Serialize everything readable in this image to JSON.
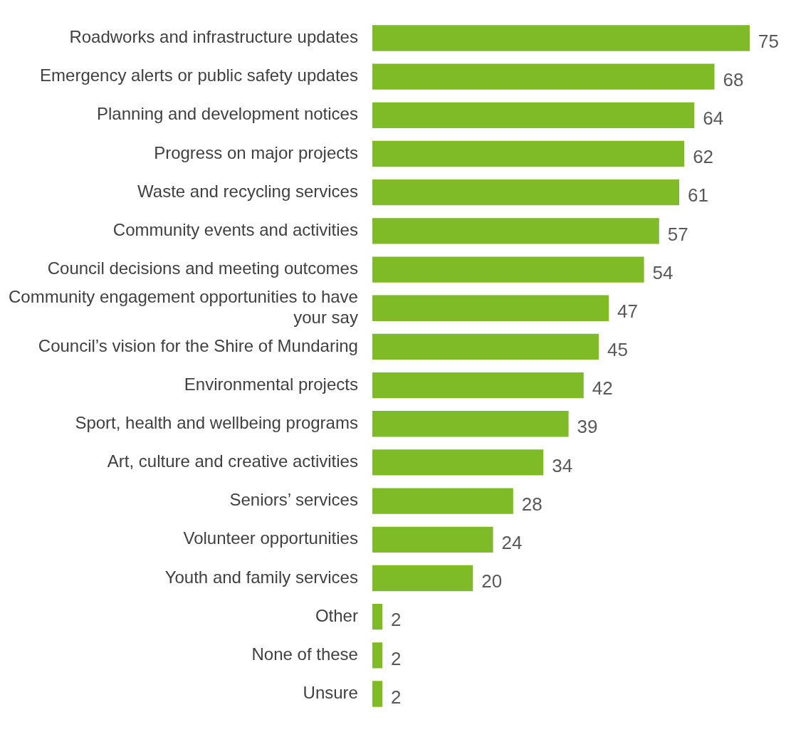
{
  "chart_data": {
    "type": "bar",
    "orientation": "horizontal",
    "categories": [
      "Roadworks and infrastructure updates",
      "Emergency alerts or public safety updates",
      "Planning and development notices",
      "Progress on major projects",
      "Waste and recycling services",
      "Community events and activities",
      "Council decisions and meeting outcomes",
      "Community engagement opportunities to have your say",
      "Council’s vision for the Shire of Mundaring",
      "Environmental projects",
      "Sport, health and wellbeing programs",
      "Art, culture and creative activities",
      "Seniors’ services",
      "Volunteer opportunities",
      "Youth and family services",
      "Other",
      "None of these",
      "Unsure"
    ],
    "values": [
      75,
      68,
      64,
      62,
      61,
      57,
      54,
      47,
      45,
      42,
      39,
      34,
      28,
      24,
      20,
      2,
      2,
      2
    ],
    "color": "#7fba27",
    "xlim": [
      0,
      75
    ],
    "data_labels": true,
    "grid": false,
    "legend": false,
    "tick_labels": "y"
  }
}
